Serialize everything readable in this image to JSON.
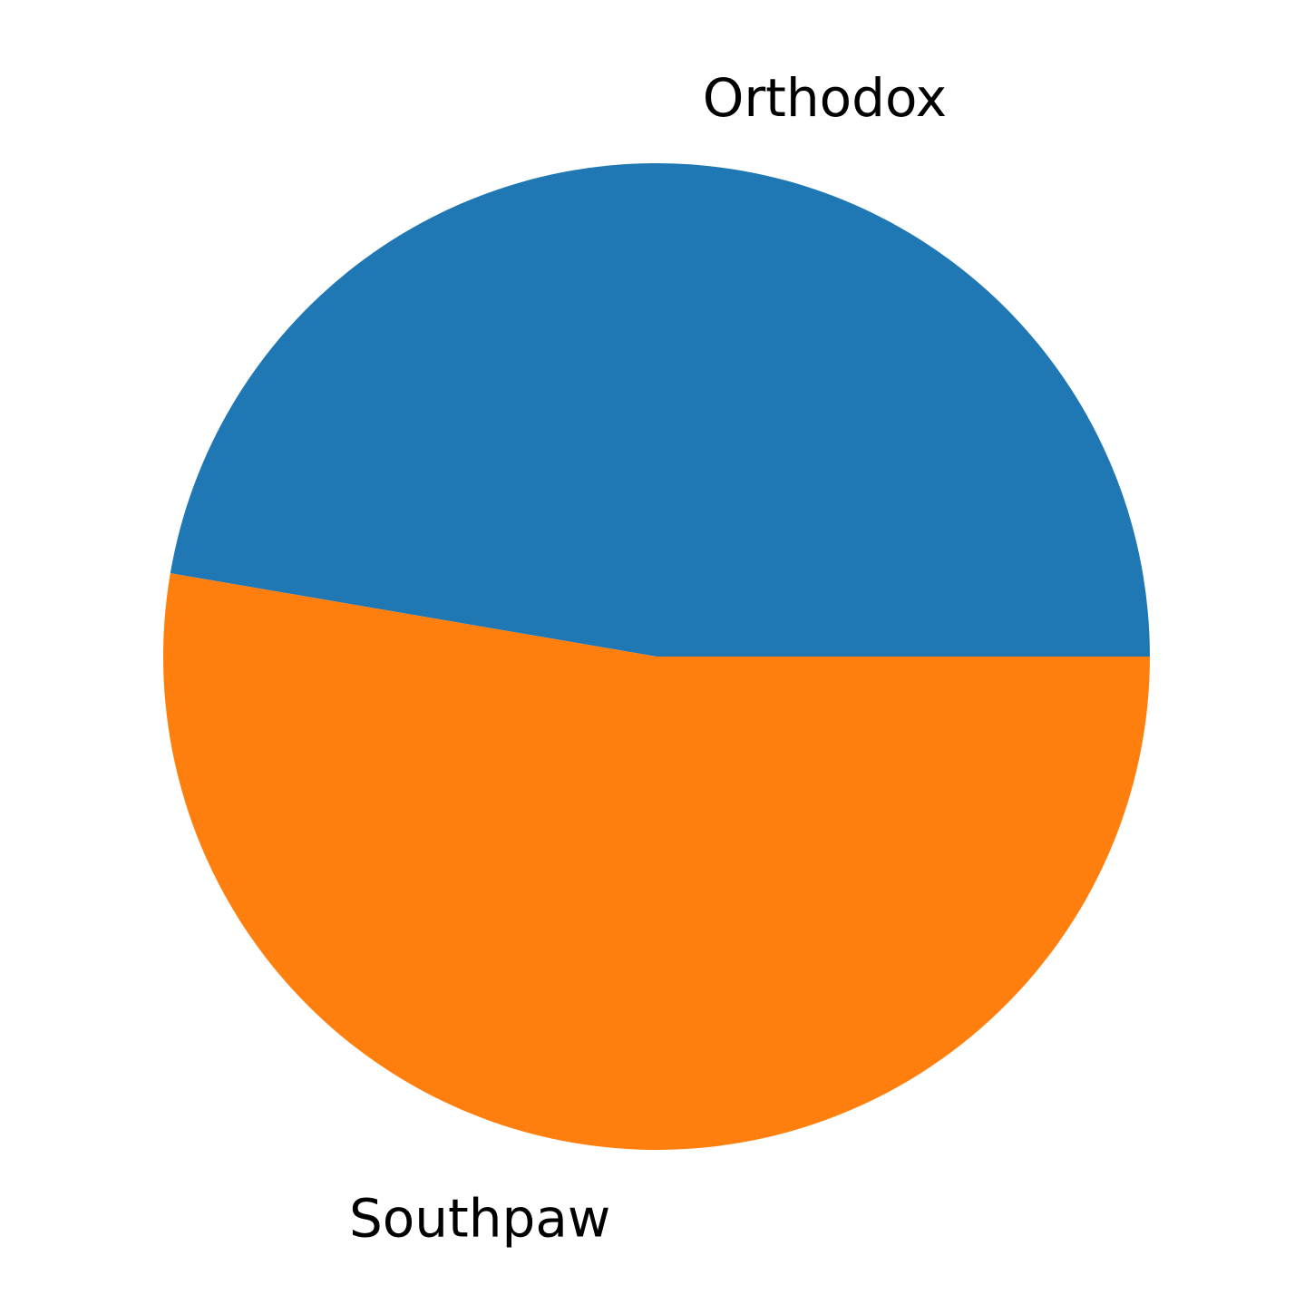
{
  "chart_data": {
    "type": "pie",
    "labels": [
      "Orthodox",
      "Southpaw"
    ],
    "values": [
      47.3,
      52.7
    ],
    "colors": [
      "#1f77b4",
      "#ff7f0e"
    ],
    "start_angle_deg": 0,
    "direction": "counterclockwise",
    "legend": "none"
  }
}
